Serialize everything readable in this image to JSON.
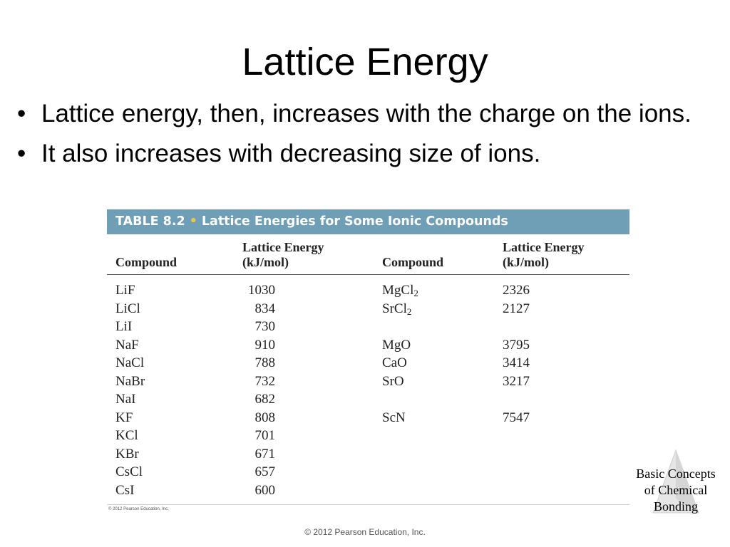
{
  "slide": {
    "title": "Lattice Energy",
    "bullets": [
      "Lattice energy, then, increases with the charge on the ions.",
      "It also increases with decreasing size of ions."
    ],
    "bullet_symbol": "•"
  },
  "table": {
    "label": "TABLE 8.2",
    "separator": "•",
    "caption": "Lattice Energies for Some Ionic Compounds",
    "header_color": "#6e9fb6",
    "columns": {
      "compound": "Compound",
      "energy_line1": "Lattice Energy",
      "energy_line2": "(kJ/mol)"
    },
    "left": [
      {
        "compound": "LiF",
        "energy": "1030"
      },
      {
        "compound": "LiCl",
        "energy": "834"
      },
      {
        "compound": "LiI",
        "energy": "730"
      },
      {
        "compound": "NaF",
        "energy": "910"
      },
      {
        "compound": "NaCl",
        "energy": "788"
      },
      {
        "compound": "NaBr",
        "energy": "732"
      },
      {
        "compound": "NaI",
        "energy": "682"
      },
      {
        "compound": "KF",
        "energy": "808"
      },
      {
        "compound": "KCl",
        "energy": "701"
      },
      {
        "compound": "KBr",
        "energy": "671"
      },
      {
        "compound": "CsCl",
        "energy": "657"
      },
      {
        "compound": "CsI",
        "energy": "600"
      }
    ],
    "right": [
      {
        "formula": "MgCl",
        "sub": "2",
        "energy": "2326"
      },
      {
        "formula": "SrCl",
        "sub": "2",
        "energy": "2127"
      },
      {
        "formula": "",
        "sub": "",
        "energy": ""
      },
      {
        "formula": "MgO",
        "sub": "",
        "energy": "3795"
      },
      {
        "formula": "CaO",
        "sub": "",
        "energy": "3414"
      },
      {
        "formula": "SrO",
        "sub": "",
        "energy": "3217"
      },
      {
        "formula": "",
        "sub": "",
        "energy": ""
      },
      {
        "formula": "ScN",
        "sub": "",
        "energy": "7547"
      }
    ],
    "copyright": "© 2012 Pearson Education, Inc."
  },
  "chapter": {
    "line1": "Basic Concepts",
    "line2": "of Chemical",
    "line3": "Bonding"
  },
  "footer": "© 2012 Pearson Education, Inc."
}
